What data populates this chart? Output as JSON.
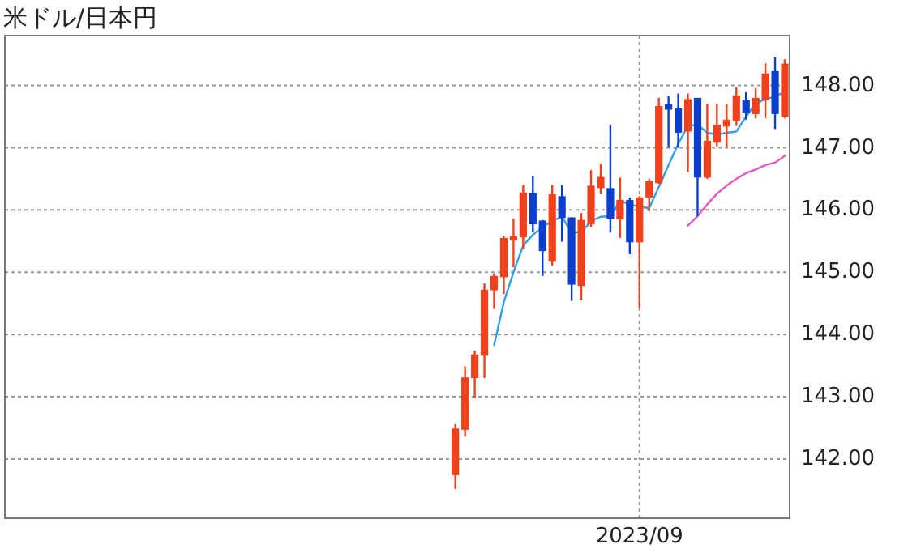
{
  "chart_data": {
    "type": "candlestick",
    "title": "米ドル/日本円",
    "categories": [
      null,
      null,
      null,
      null,
      null,
      null,
      null,
      null,
      null,
      null,
      null,
      null,
      null,
      null,
      null,
      null,
      null,
      null,
      null,
      null,
      null,
      null,
      null,
      null,
      null,
      null,
      null,
      null,
      null,
      null,
      null,
      null,
      null,
      null,
      null,
      null,
      null,
      null,
      null,
      null,
      null,
      null,
      null,
      null,
      null,
      null,
      null,
      null,
      null,
      null,
      null,
      null,
      null,
      null,
      null,
      null,
      null,
      null,
      null,
      null,
      null,
      null,
      null,
      null,
      null,
      "2023/09",
      null,
      null,
      null,
      null,
      null,
      null,
      null,
      null,
      null,
      null,
      null,
      null,
      null,
      null,
      null
    ],
    "ohlc": [
      null,
      null,
      null,
      null,
      null,
      null,
      null,
      null,
      null,
      null,
      null,
      null,
      null,
      null,
      null,
      null,
      null,
      null,
      null,
      null,
      null,
      null,
      null,
      null,
      null,
      null,
      null,
      null,
      null,
      null,
      null,
      null,
      null,
      null,
      null,
      null,
      null,
      null,
      null,
      null,
      null,
      null,
      null,
      null,
      null,
      null,
      [
        141.74,
        142.56,
        141.52,
        142.49
      ],
      [
        142.47,
        143.49,
        142.36,
        143.31
      ],
      [
        143.3,
        143.74,
        142.98,
        143.68
      ],
      [
        143.66,
        144.82,
        143.3,
        144.72
      ],
      [
        144.71,
        144.98,
        144.41,
        144.94
      ],
      [
        144.92,
        145.58,
        144.65,
        145.55
      ],
      [
        145.51,
        145.86,
        145.08,
        145.58
      ],
      [
        145.56,
        146.4,
        145.37,
        146.28
      ],
      [
        146.27,
        146.55,
        145.64,
        145.77
      ],
      [
        145.83,
        145.84,
        144.94,
        145.34
      ],
      [
        145.17,
        146.4,
        145.11,
        146.25
      ],
      [
        146.22,
        146.4,
        145.49,
        145.87
      ],
      [
        145.88,
        145.88,
        144.54,
        144.8
      ],
      [
        144.78,
        145.95,
        144.55,
        145.84
      ],
      [
        145.77,
        146.64,
        145.73,
        146.39
      ],
      [
        146.35,
        146.74,
        146.25,
        146.53
      ],
      [
        146.35,
        147.37,
        145.64,
        145.86
      ],
      [
        145.85,
        146.52,
        145.55,
        146.16
      ],
      [
        146.16,
        146.2,
        145.29,
        145.48
      ],
      [
        145.48,
        146.22,
        144.42,
        146.2
      ],
      [
        146.2,
        146.5,
        145.98,
        146.46
      ],
      [
        146.43,
        147.8,
        146.42,
        147.67
      ],
      [
        147.7,
        147.83,
        147.0,
        147.61
      ],
      [
        147.63,
        147.87,
        147.0,
        147.24
      ],
      [
        147.26,
        147.87,
        146.61,
        147.78
      ],
      [
        147.8,
        147.8,
        145.9,
        146.52
      ],
      [
        146.52,
        147.71,
        146.5,
        147.11
      ],
      [
        147.08,
        147.71,
        147.02,
        147.37
      ],
      [
        147.34,
        147.7,
        147.0,
        147.45
      ],
      [
        147.43,
        147.97,
        147.35,
        147.84
      ],
      [
        147.76,
        147.89,
        147.45,
        147.56
      ],
      [
        147.54,
        147.96,
        147.47,
        147.8
      ],
      [
        147.76,
        148.36,
        147.47,
        148.19
      ],
      [
        148.23,
        148.45,
        147.3,
        147.54
      ],
      [
        147.5,
        148.42,
        147.47,
        148.35
      ]
    ],
    "colors": [
      null,
      null,
      null,
      null,
      null,
      null,
      null,
      null,
      null,
      null,
      null,
      null,
      null,
      null,
      null,
      null,
      null,
      null,
      null,
      null,
      null,
      null,
      null,
      null,
      null,
      null,
      null,
      null,
      null,
      null,
      null,
      null,
      null,
      null,
      null,
      null,
      null,
      null,
      null,
      null,
      null,
      null,
      null,
      null,
      null,
      null,
      "#f0401c",
      "#f0401c",
      "#f0401c",
      "#f0401c",
      "#f0401c",
      "#f0401c",
      "#f0401c",
      "#f0401c",
      "#0a3fd0",
      "#0a3fd0",
      "#f0401c",
      "#0a3fd0",
      "#0a3fd0",
      "#f0401c",
      "#f0401c",
      "#f0401c",
      "#0a3fd0",
      "#f0401c",
      "#0a3fd0",
      "#f0401c",
      "#f0401c",
      "#f0401c",
      "#0a3fd0",
      "#0a3fd0",
      "#f0401c",
      "#0a3fd0",
      "#f0401c",
      "#f0401c",
      "#f0401c",
      "#f0401c",
      "#0a3fd0",
      "#f0401c",
      "#f0401c",
      "#0a3fd0",
      "#f0401c"
    ],
    "series": [
      {
        "type": "line",
        "color": "#30a0e8",
        "values": [
          null,
          null,
          null,
          null,
          null,
          null,
          null,
          null,
          null,
          null,
          null,
          null,
          null,
          null,
          null,
          null,
          null,
          null,
          null,
          null,
          null,
          null,
          null,
          null,
          null,
          null,
          null,
          null,
          null,
          null,
          null,
          null,
          null,
          null,
          null,
          null,
          null,
          null,
          null,
          null,
          null,
          null,
          null,
          null,
          null,
          null,
          null,
          null,
          null,
          null,
          143.83,
          144.52,
          145.0,
          145.43,
          145.6,
          145.73,
          145.82,
          145.89,
          145.64,
          145.64,
          145.82,
          145.89,
          145.9,
          146.15,
          146.09,
          146.05,
          146.03,
          146.37,
          146.72,
          147.06,
          147.35,
          147.37,
          147.24,
          147.21,
          147.24,
          147.26,
          147.5,
          147.71,
          147.78,
          147.82,
          147.9
        ]
      },
      {
        "type": "line",
        "color": "#e058c0",
        "values": [
          null,
          null,
          null,
          null,
          null,
          null,
          null,
          null,
          null,
          null,
          null,
          null,
          null,
          null,
          null,
          null,
          null,
          null,
          null,
          null,
          null,
          null,
          null,
          null,
          null,
          null,
          null,
          null,
          null,
          null,
          null,
          null,
          null,
          null,
          null,
          null,
          null,
          null,
          null,
          null,
          null,
          null,
          null,
          null,
          null,
          null,
          null,
          null,
          null,
          null,
          null,
          null,
          null,
          null,
          null,
          null,
          null,
          null,
          null,
          null,
          null,
          null,
          null,
          null,
          null,
          null,
          null,
          null,
          null,
          null,
          145.75,
          145.9,
          146.09,
          146.26,
          146.39,
          146.5,
          146.59,
          146.65,
          146.72,
          146.76,
          146.87
        ]
      }
    ],
    "ylim": [
      141.05,
      148.8
    ],
    "yticks": [
      {
        "value": 142,
        "label": "142.00"
      },
      {
        "value": 143,
        "label": "143.00"
      },
      {
        "value": 144,
        "label": "144.00"
      },
      {
        "value": 145,
        "label": "145.00"
      },
      {
        "value": 146,
        "label": "146.00"
      },
      {
        "value": 147,
        "label": "147.00"
      },
      {
        "value": 148,
        "label": "148.00"
      }
    ],
    "grid": true
  }
}
